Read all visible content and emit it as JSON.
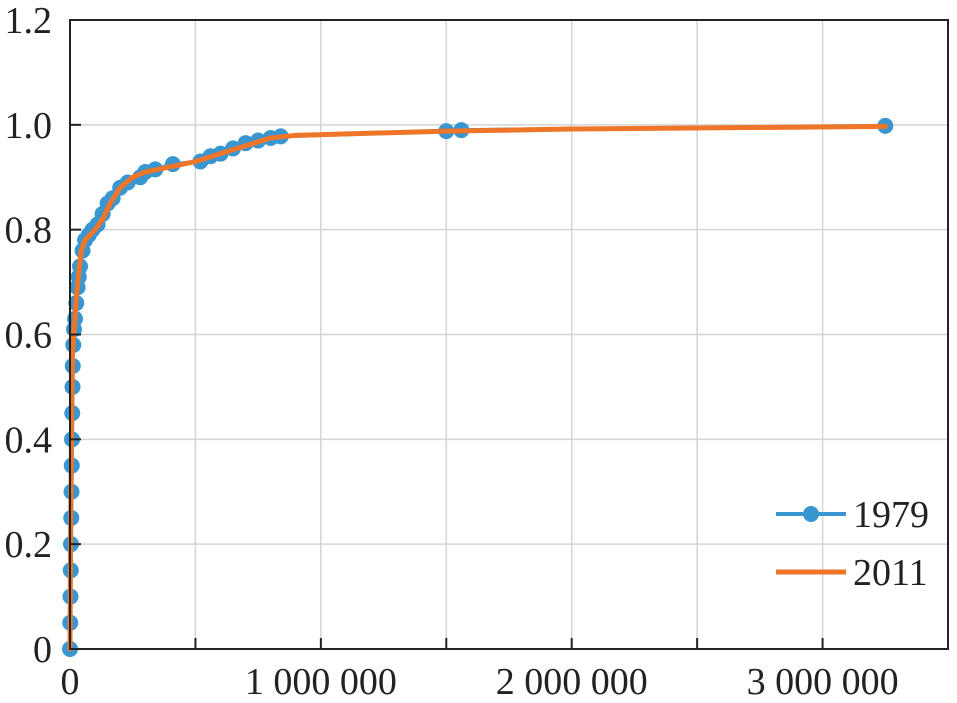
{
  "chart_data": {
    "type": "line",
    "title": "",
    "xlabel": "",
    "ylabel": "",
    "xlim": [
      0,
      3500000
    ],
    "ylim": [
      0,
      1.2
    ],
    "grid": true,
    "legend_position": "bottom-right",
    "x_ticks": [
      {
        "value": 0,
        "label": "0"
      },
      {
        "value": 1000000,
        "label": "1 000 000"
      },
      {
        "value": 2000000,
        "label": "2 000 000"
      },
      {
        "value": 3000000,
        "label": "3 000 000"
      }
    ],
    "x_minor_ticks": [
      500000,
      1500000,
      2500000,
      3500000
    ],
    "y_ticks": [
      {
        "value": 0,
        "label": "0"
      },
      {
        "value": 0.2,
        "label": "0.2"
      },
      {
        "value": 0.4,
        "label": "0.4"
      },
      {
        "value": 0.6,
        "label": "0.6"
      },
      {
        "value": 0.8,
        "label": "0.8"
      },
      {
        "value": 1.0,
        "label": "1.0"
      },
      {
        "value": 1.2,
        "label": "1.2"
      }
    ],
    "series": [
      {
        "name": "1979",
        "color": "#3a96d0",
        "marker": "circle",
        "points": [
          [
            0,
            0
          ],
          [
            1000,
            0.05
          ],
          [
            2000,
            0.1
          ],
          [
            3000,
            0.15
          ],
          [
            4000,
            0.2
          ],
          [
            5000,
            0.25
          ],
          [
            6000,
            0.3
          ],
          [
            7000,
            0.35
          ],
          [
            8000,
            0.4
          ],
          [
            9000,
            0.45
          ],
          [
            10000,
            0.5
          ],
          [
            11000,
            0.54
          ],
          [
            13000,
            0.58
          ],
          [
            16000,
            0.61
          ],
          [
            20000,
            0.63
          ],
          [
            25000,
            0.66
          ],
          [
            30000,
            0.69
          ],
          [
            35000,
            0.71
          ],
          [
            40000,
            0.73
          ],
          [
            50000,
            0.76
          ],
          [
            60000,
            0.78
          ],
          [
            75000,
            0.79
          ],
          [
            90000,
            0.8
          ],
          [
            110000,
            0.81
          ],
          [
            130000,
            0.83
          ],
          [
            150000,
            0.85
          ],
          [
            170000,
            0.86
          ],
          [
            200000,
            0.88
          ],
          [
            230000,
            0.89
          ],
          [
            280000,
            0.9
          ],
          [
            300000,
            0.91
          ],
          [
            340000,
            0.915
          ],
          [
            410000,
            0.925
          ],
          [
            520000,
            0.93
          ],
          [
            560000,
            0.94
          ],
          [
            600000,
            0.945
          ],
          [
            650000,
            0.955
          ],
          [
            700000,
            0.965
          ],
          [
            750000,
            0.97
          ],
          [
            800000,
            0.975
          ],
          [
            840000,
            0.978
          ],
          [
            1500000,
            0.988
          ],
          [
            1560000,
            0.99
          ],
          [
            3250000,
            0.998
          ]
        ]
      },
      {
        "name": "2011",
        "color": "#ef7629",
        "marker": "dot",
        "points": [
          [
            0,
            0
          ],
          [
            1000,
            0.1
          ],
          [
            2000,
            0.2
          ],
          [
            4000,
            0.3
          ],
          [
            6000,
            0.4
          ],
          [
            8000,
            0.5
          ],
          [
            10000,
            0.56
          ],
          [
            14000,
            0.6
          ],
          [
            20000,
            0.63
          ],
          [
            25000,
            0.67
          ],
          [
            35000,
            0.72
          ],
          [
            45000,
            0.76
          ],
          [
            60000,
            0.78
          ],
          [
            80000,
            0.79
          ],
          [
            100000,
            0.8
          ],
          [
            130000,
            0.82
          ],
          [
            160000,
            0.85
          ],
          [
            200000,
            0.88
          ],
          [
            250000,
            0.9
          ],
          [
            300000,
            0.91
          ],
          [
            400000,
            0.92
          ],
          [
            500000,
            0.93
          ],
          [
            600000,
            0.945
          ],
          [
            700000,
            0.96
          ],
          [
            800000,
            0.975
          ],
          [
            900000,
            0.98
          ],
          [
            1500000,
            0.988
          ],
          [
            2000000,
            0.992
          ],
          [
            3250000,
            0.997
          ]
        ]
      }
    ]
  }
}
